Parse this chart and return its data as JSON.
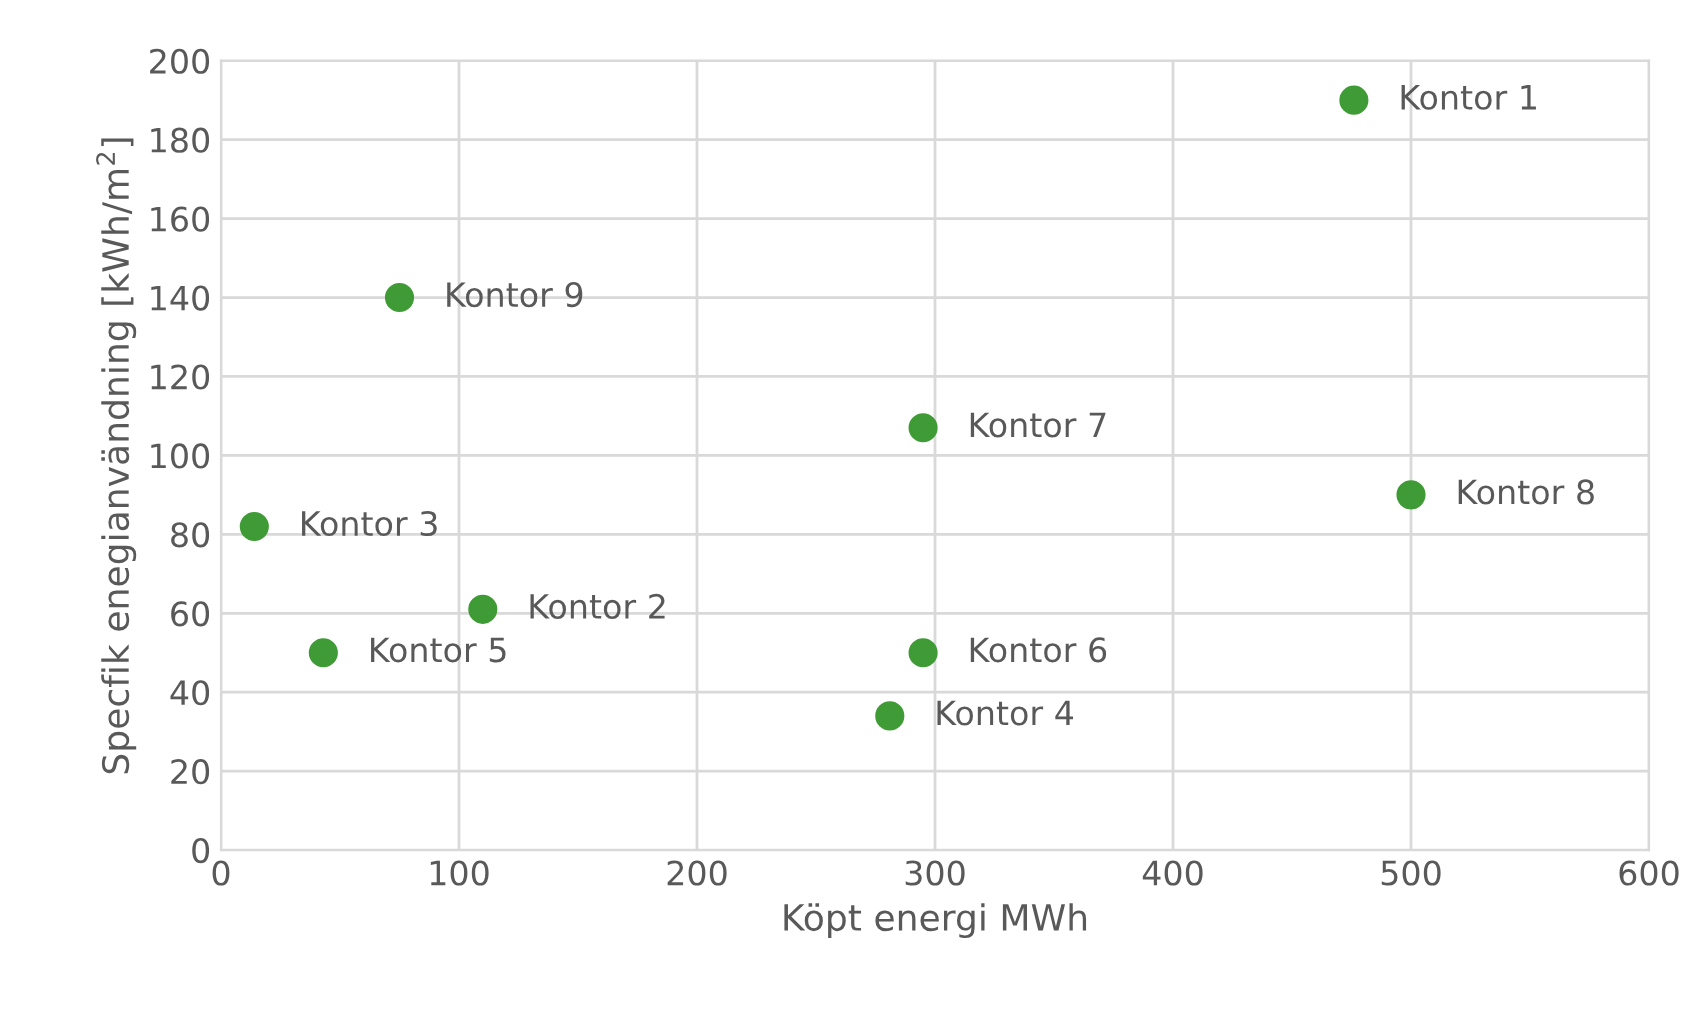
{
  "chart_data": {
    "type": "scatter",
    "xlabel": "Köpt energi MWh",
    "ylabel": "Specfik enegianvändning [kWh/m$^{2}$]",
    "x": [
      476,
      110,
      14,
      281,
      43,
      295,
      295,
      500,
      75
    ],
    "series": [
      {
        "color": "#3f9b35",
        "values": [
          190,
          61,
          82,
          34,
          50,
          50,
          107,
          90,
          140
        ]
      }
    ],
    "annotations": [
      {
        "text": "Kontor 1",
        "x": 476,
        "y": 190
      },
      {
        "text": "Kontor 2",
        "x": 110,
        "y": 61
      },
      {
        "text": "Kontor 3",
        "x": 14,
        "y": 82
      },
      {
        "text": "Kontor 4",
        "x": 281,
        "y": 34
      },
      {
        "text": "Kontor 5",
        "x": 43,
        "y": 50
      },
      {
        "text": "Kontor 6",
        "x": 295,
        "y": 50
      },
      {
        "text": "Kontor 7",
        "x": 295,
        "y": 107
      },
      {
        "text": "Kontor 8",
        "x": 500,
        "y": 90
      },
      {
        "text": "Kontor 9",
        "x": 75,
        "y": 140
      }
    ],
    "xlim": [
      0,
      600
    ],
    "xticks": [
      0,
      100,
      200,
      300,
      400,
      500,
      600
    ],
    "ylim": [
      0,
      200
    ],
    "yticks": [
      0,
      20,
      40,
      60,
      80,
      100,
      120,
      140,
      160,
      180,
      200
    ],
    "grid": true,
    "marker": "circle",
    "legend": false
  }
}
